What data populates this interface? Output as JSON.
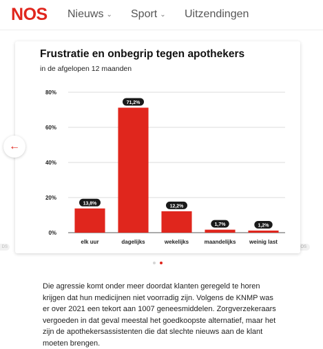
{
  "header": {
    "logo": [
      "N",
      "O",
      "S"
    ],
    "nav": [
      {
        "label": "Nieuws",
        "has_dropdown": true
      },
      {
        "label": "Sport",
        "has_dropdown": true
      },
      {
        "label": "Uitzendingen",
        "has_dropdown": false
      }
    ]
  },
  "card": {
    "tag_left": "DS",
    "tag_right": "NOS"
  },
  "prev_icon": "arrow-left-icon",
  "carousel": {
    "pages": 2,
    "active_index": 1
  },
  "article": {
    "text": "Die agressie komt onder meer doordat klanten geregeld te horen krijgen dat hun medicijnen niet voorradig zijn. Volgens de KNMP was er over 2021 een tekort aan 1007 geneesmiddelen. Zorgverzekeraars vergoeden in dat geval meestal het goedkoopste alternatief, maar het zijn de apothekersassistenten die dat slechte nieuws aan de klant moeten brengen."
  },
  "colors": {
    "accent": "#e0261d",
    "label_bg": "#1a1a1a",
    "grid": "#cfcfcf"
  },
  "chart_data": {
    "type": "bar",
    "title": "Frustratie en onbegrip tegen apothekers",
    "subtitle": "in de afgelopen 12 maanden",
    "categories": [
      "elk uur",
      "dagelijks",
      "wekelijks",
      "maandelijks",
      "weinig last"
    ],
    "values": [
      13.8,
      71.2,
      12.2,
      1.7,
      1.2
    ],
    "data_labels": [
      "13,8%",
      "71,2%",
      "12,2%",
      "1,7%",
      "1,2%"
    ],
    "yticks": [
      "0%",
      "20%",
      "40%",
      "60%",
      "80%"
    ],
    "ylim": [
      0,
      80
    ],
    "grid": true,
    "color": "#e0261d"
  }
}
